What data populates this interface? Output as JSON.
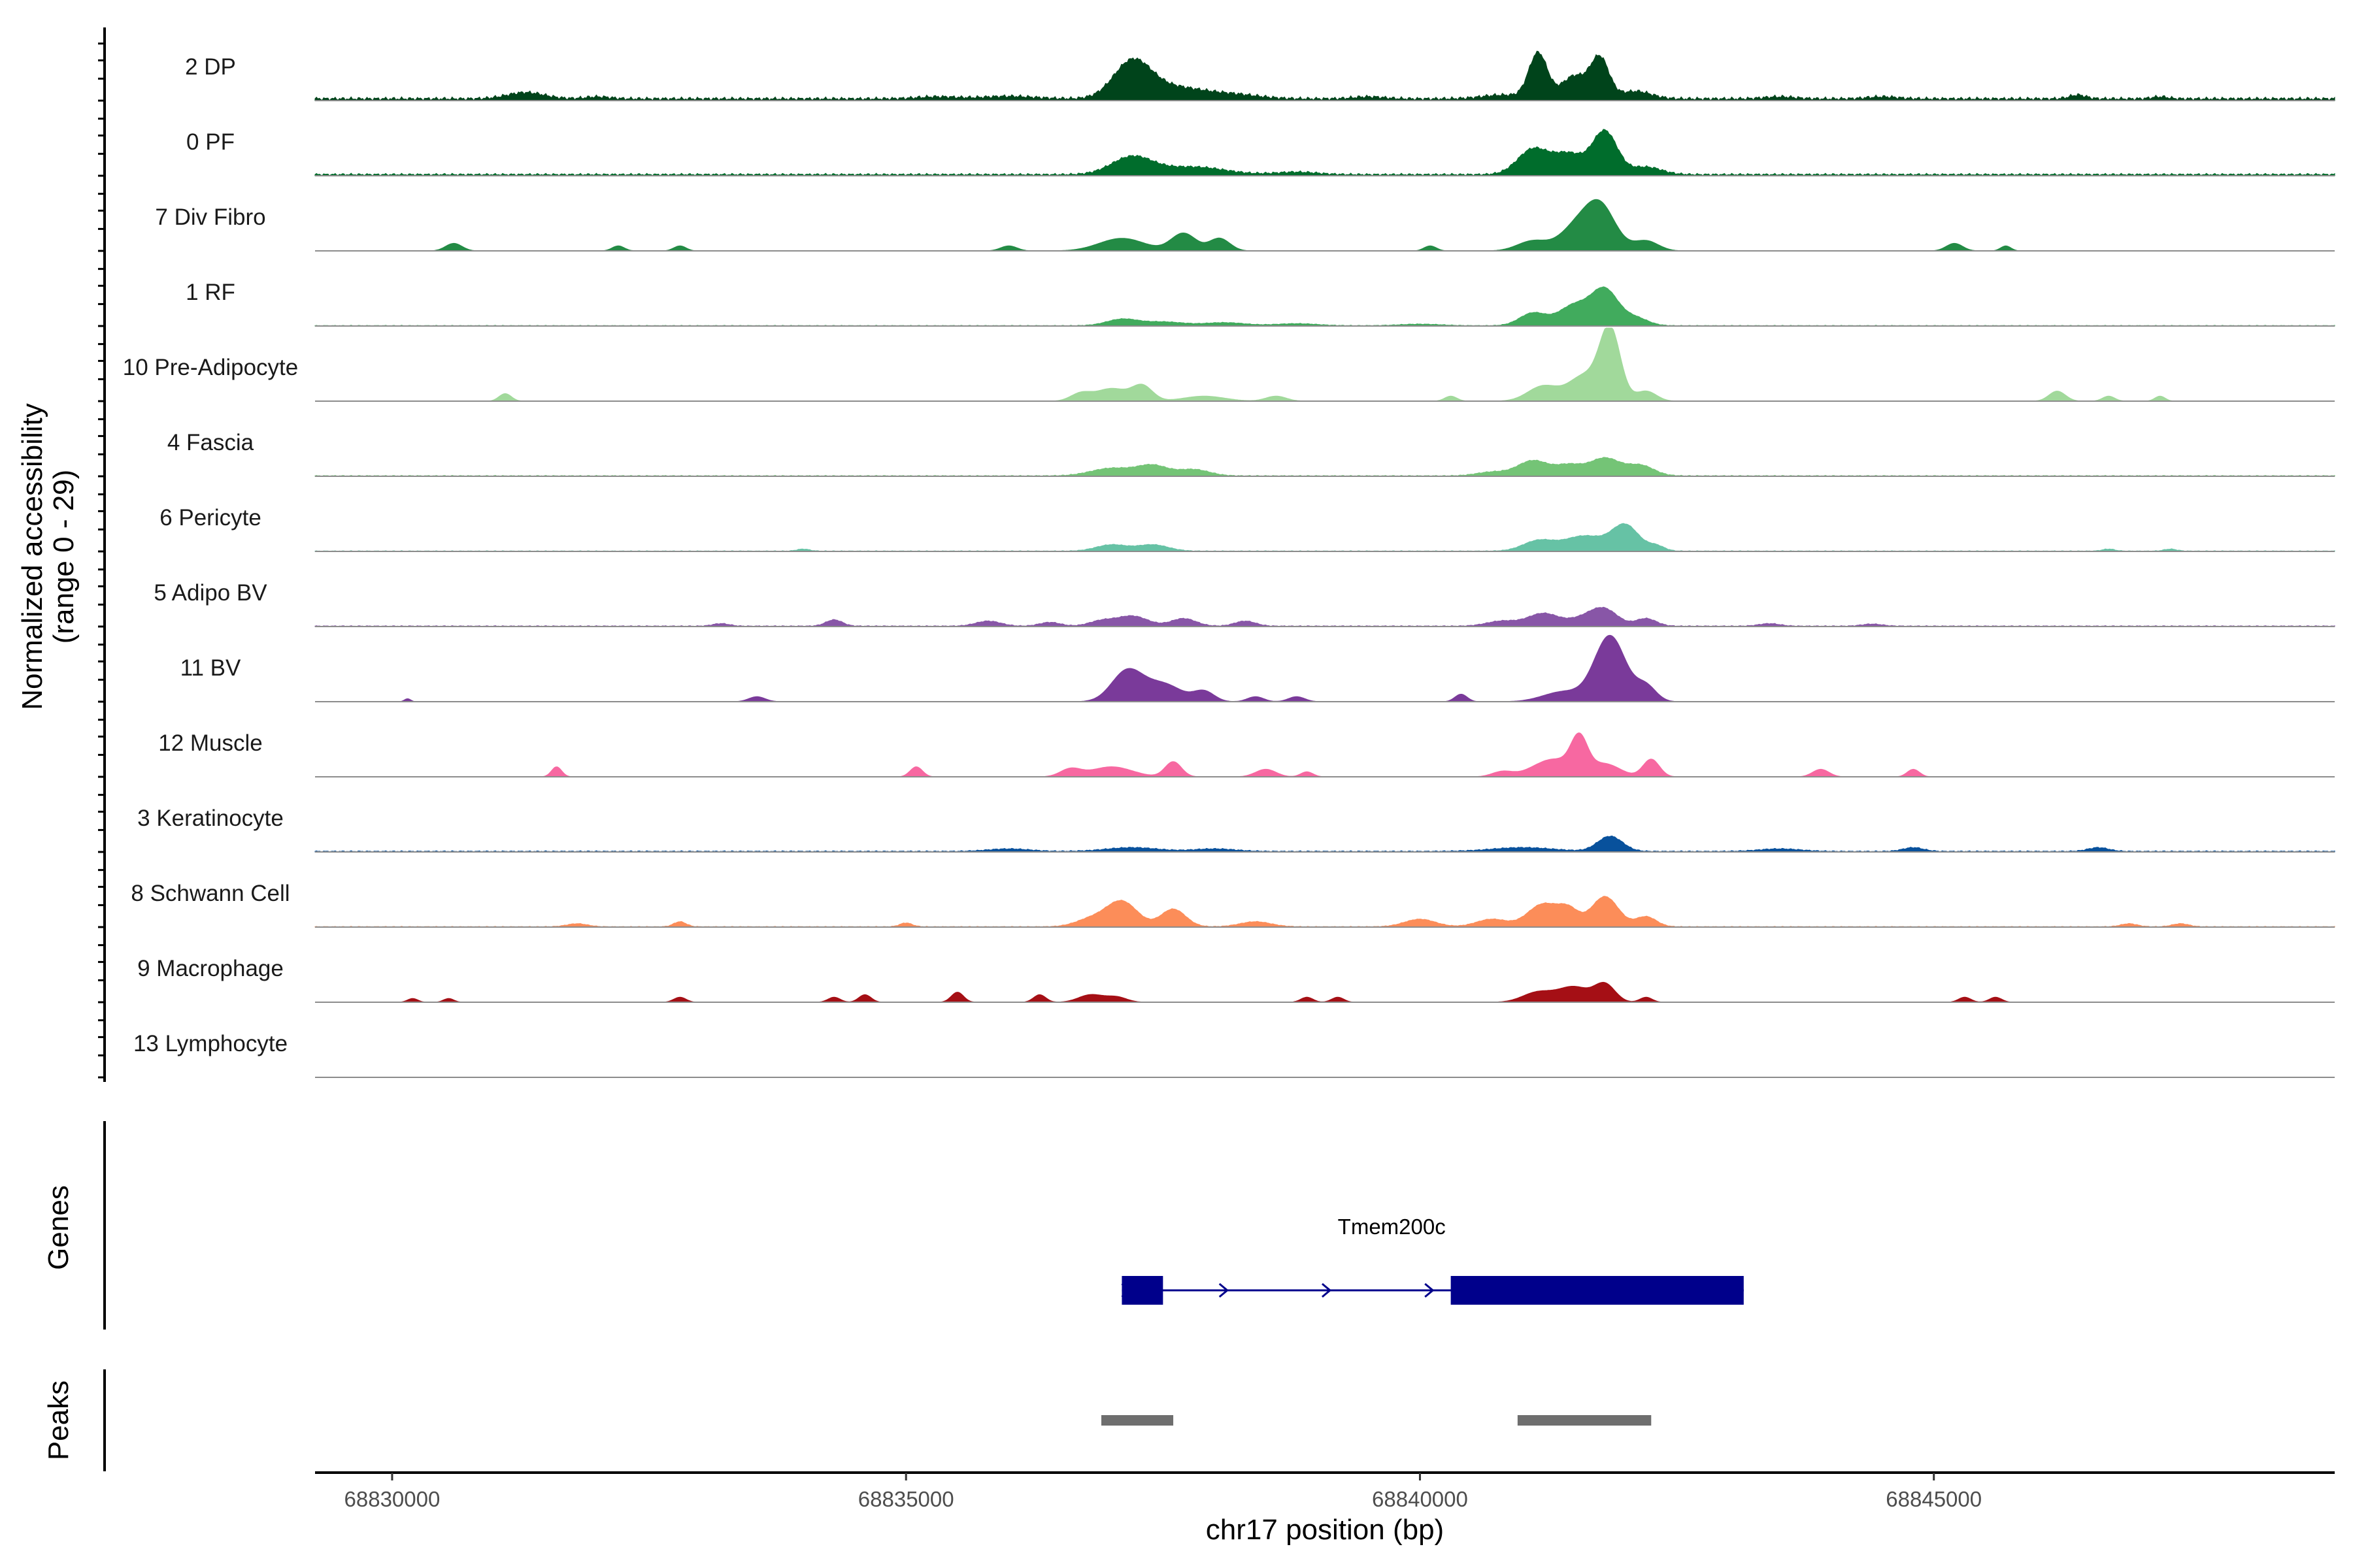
{
  "chart_data": {
    "type": "area",
    "title": "",
    "ylabel_line1": "Normalized accessibility",
    "ylabel_line2": "(range 0 - 29)",
    "y_range": [
      0,
      29
    ],
    "xlabel": "chr17 position (bp)",
    "xlim": [
      68829250,
      68848900
    ],
    "x_ticks": [
      68830000,
      68835000,
      68840000,
      68845000
    ],
    "x_tick_labels": [
      "68830000",
      "68835000",
      "68840000",
      "68845000"
    ],
    "tracks": [
      {
        "name": "2 DP",
        "color": "#00441b",
        "baseline": 1.5,
        "peaks": [
          [
            68831300,
            2.5,
            180
          ],
          [
            68832000,
            0.8,
            120
          ],
          [
            68835300,
            0.8,
            200
          ],
          [
            68836000,
            1.0,
            250
          ],
          [
            68837200,
            14,
            180
          ],
          [
            68837600,
            4.5,
            300
          ],
          [
            68838200,
            1.5,
            250
          ],
          [
            68839500,
            0.8,
            150
          ],
          [
            68840800,
            1.5,
            200
          ],
          [
            68841150,
            18,
            90
          ],
          [
            68841500,
            9,
            120
          ],
          [
            68841750,
            16,
            90
          ],
          [
            68842100,
            3,
            150
          ],
          [
            68843500,
            0.8,
            150
          ],
          [
            68844500,
            0.8,
            150
          ],
          [
            68846400,
            1.5,
            80
          ],
          [
            68847200,
            0.8,
            80
          ]
        ]
      },
      {
        "name": "0 PF",
        "color": "#006d2c",
        "baseline": 1.0,
        "peaks": [
          [
            68837200,
            7,
            200
          ],
          [
            68837800,
            3,
            300
          ],
          [
            68841100,
            10,
            150
          ],
          [
            68841450,
            8,
            150
          ],
          [
            68841800,
            17,
            120
          ],
          [
            68842200,
            3,
            150
          ],
          [
            68838800,
            1,
            200
          ]
        ]
      },
      {
        "name": "7 Div Fibro",
        "color": "#238b45",
        "baseline": 0,
        "peaks": [
          [
            68830600,
            3,
            80
          ],
          [
            68832200,
            2,
            60
          ],
          [
            68832800,
            2,
            60
          ],
          [
            68836000,
            2,
            80
          ],
          [
            68837100,
            5,
            220
          ],
          [
            68837700,
            7,
            120
          ],
          [
            68838050,
            5,
            100
          ],
          [
            68840100,
            2,
            60
          ],
          [
            68841100,
            4,
            150
          ],
          [
            68841500,
            8,
            150
          ],
          [
            68841750,
            18,
            150
          ],
          [
            68842200,
            4,
            120
          ],
          [
            68845200,
            3,
            80
          ],
          [
            68845700,
            2,
            50
          ]
        ]
      },
      {
        "name": "1 RF",
        "color": "#41ab5d",
        "baseline": 0.3,
        "peaks": [
          [
            68837100,
            2.5,
            150
          ],
          [
            68837500,
            1.5,
            200
          ],
          [
            68838100,
            1.2,
            200
          ],
          [
            68838800,
            0.8,
            200
          ],
          [
            68841100,
            5,
            130
          ],
          [
            68841500,
            8,
            150
          ],
          [
            68841800,
            14,
            130
          ],
          [
            68842100,
            3,
            120
          ],
          [
            68840000,
            0.6,
            200
          ]
        ]
      },
      {
        "name": "10 Pre-Adipocyte",
        "color": "#a1d99b",
        "baseline": 0,
        "peaks": [
          [
            68831100,
            3,
            60
          ],
          [
            68836700,
            3,
            100
          ],
          [
            68837000,
            5,
            150
          ],
          [
            68837300,
            6,
            100
          ],
          [
            68837900,
            2,
            200
          ],
          [
            68838600,
            2,
            100
          ],
          [
            68840300,
            2,
            60
          ],
          [
            68841200,
            6,
            150
          ],
          [
            68841600,
            10,
            150
          ],
          [
            68841850,
            28,
            100
          ],
          [
            68842200,
            4,
            100
          ],
          [
            68846200,
            4,
            80
          ],
          [
            68846700,
            2,
            60
          ],
          [
            68847200,
            2,
            50
          ]
        ]
      },
      {
        "name": "4 Fascia",
        "color": "#74c476",
        "baseline": 0.4,
        "peaks": [
          [
            68837000,
            3,
            200
          ],
          [
            68837400,
            4,
            150
          ],
          [
            68837800,
            2.5,
            150
          ],
          [
            68841100,
            6,
            150
          ],
          [
            68841450,
            4,
            130
          ],
          [
            68841800,
            7,
            150
          ],
          [
            68842150,
            4,
            130
          ],
          [
            68840700,
            1.5,
            150
          ]
        ]
      },
      {
        "name": "6 Pericyte",
        "color": "#66c2a5",
        "baseline": 0.3,
        "peaks": [
          [
            68837000,
            2.5,
            150
          ],
          [
            68837400,
            2.5,
            150
          ],
          [
            68841150,
            4,
            150
          ],
          [
            68841600,
            6,
            200
          ],
          [
            68842000,
            10,
            130
          ],
          [
            68842300,
            2,
            80
          ],
          [
            68834000,
            0.8,
            60
          ],
          [
            68846700,
            0.8,
            60
          ],
          [
            68847300,
            0.8,
            60
          ]
        ]
      },
      {
        "name": "5 Adipo BV",
        "color": "#8856a7",
        "baseline": 0.4,
        "peaks": [
          [
            68833200,
            1,
            80
          ],
          [
            68834300,
            2.5,
            80
          ],
          [
            68835800,
            2,
            120
          ],
          [
            68836400,
            1.5,
            100
          ],
          [
            68836900,
            2,
            120
          ],
          [
            68837200,
            4,
            150
          ],
          [
            68837700,
            3,
            120
          ],
          [
            68838300,
            2,
            100
          ],
          [
            68840800,
            2,
            150
          ],
          [
            68841200,
            5,
            150
          ],
          [
            68841600,
            3,
            150
          ],
          [
            68841800,
            6,
            130
          ],
          [
            68842200,
            3,
            100
          ],
          [
            68843400,
            1,
            100
          ],
          [
            68844400,
            0.8,
            100
          ]
        ]
      },
      {
        "name": "11 BV",
        "color": "#7a3a9a",
        "baseline": 0,
        "peaks": [
          [
            68830150,
            1.2,
            30
          ],
          [
            68833550,
            2,
            80
          ],
          [
            68837150,
            12,
            150
          ],
          [
            68837500,
            7,
            180
          ],
          [
            68837900,
            4,
            100
          ],
          [
            68838400,
            2,
            80
          ],
          [
            68838800,
            2,
            80
          ],
          [
            68840400,
            3,
            60
          ],
          [
            68841400,
            4,
            200
          ],
          [
            68841850,
            26,
            150
          ],
          [
            68842200,
            6,
            100
          ]
        ]
      },
      {
        "name": "12 Muscle",
        "color": "#f768a1",
        "baseline": 0,
        "peaks": [
          [
            68831600,
            4,
            50
          ],
          [
            68835100,
            4,
            60
          ],
          [
            68836600,
            3,
            100
          ],
          [
            68837000,
            4,
            200
          ],
          [
            68837600,
            6,
            80
          ],
          [
            68838500,
            3,
            100
          ],
          [
            68838900,
            2,
            60
          ],
          [
            68840800,
            2,
            100
          ],
          [
            68841300,
            7,
            200
          ],
          [
            68841550,
            13,
            80
          ],
          [
            68841800,
            5,
            150
          ],
          [
            68842250,
            7,
            80
          ],
          [
            68843900,
            3,
            80
          ],
          [
            68844800,
            3,
            60
          ]
        ]
      },
      {
        "name": "3 Keratinocyte",
        "color": "#08519c",
        "baseline": 0.5,
        "peaks": [
          [
            68836000,
            1,
            200
          ],
          [
            68837200,
            1.5,
            250
          ],
          [
            68838000,
            1,
            200
          ],
          [
            68841000,
            1.5,
            300
          ],
          [
            68841850,
            6,
            120
          ],
          [
            68843500,
            1,
            200
          ],
          [
            68844800,
            1.5,
            100
          ],
          [
            68846600,
            1.5,
            100
          ]
        ]
      },
      {
        "name": "8 Schwann Cell",
        "color": "#fc8d59",
        "baseline": 0.3,
        "peaks": [
          [
            68831800,
            1.2,
            100
          ],
          [
            68832800,
            2,
            60
          ],
          [
            68835000,
            1.5,
            60
          ],
          [
            68836800,
            3,
            150
          ],
          [
            68837100,
            10,
            150
          ],
          [
            68837600,
            7,
            120
          ],
          [
            68838400,
            2,
            150
          ],
          [
            68840000,
            3,
            150
          ],
          [
            68840700,
            3,
            150
          ],
          [
            68841200,
            9,
            150
          ],
          [
            68841450,
            6,
            100
          ],
          [
            68841800,
            12,
            130
          ],
          [
            68842200,
            4,
            100
          ],
          [
            68846900,
            1.2,
            80
          ],
          [
            68847400,
            1.2,
            80
          ]
        ]
      },
      {
        "name": "9 Macrophage",
        "color": "#a50f15",
        "baseline": 0,
        "peaks": [
          [
            68830200,
            1.5,
            50
          ],
          [
            68830550,
            1.5,
            50
          ],
          [
            68832800,
            2,
            60
          ],
          [
            68834300,
            2,
            60
          ],
          [
            68834600,
            3,
            60
          ],
          [
            68835500,
            4,
            60
          ],
          [
            68836300,
            3,
            60
          ],
          [
            68836800,
            3,
            120
          ],
          [
            68837050,
            2,
            100
          ],
          [
            68838900,
            2,
            60
          ],
          [
            68839200,
            2,
            60
          ],
          [
            68841150,
            4,
            150
          ],
          [
            68841500,
            6,
            150
          ],
          [
            68841800,
            7,
            100
          ],
          [
            68842200,
            2,
            60
          ],
          [
            68845300,
            2,
            60
          ],
          [
            68845600,
            2,
            60
          ]
        ]
      },
      {
        "name": "13 Lymphocyte",
        "color": "#bdbdbd",
        "baseline": 0,
        "peaks": []
      }
    ],
    "genes": {
      "panel_title": "Genes",
      "name": "Tmem200c",
      "color": "#00008b",
      "start": 68837100,
      "end": 68843150,
      "exons": [
        [
          68837100,
          68837500
        ],
        [
          68840300,
          68843150
        ]
      ],
      "strand": "+",
      "arrow_positions": [
        68838100,
        68839100,
        68840100
      ]
    },
    "peaks_track": {
      "panel_title": "Peaks",
      "color": "#6e6e6e",
      "regions": [
        [
          68836900,
          68837600
        ],
        [
          68840950,
          68842250
        ]
      ]
    }
  }
}
